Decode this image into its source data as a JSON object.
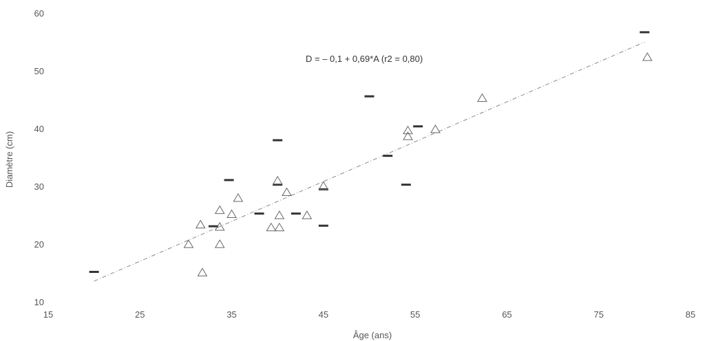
{
  "chart_data": {
    "type": "scatter",
    "title": "",
    "xlabel": "Âge (ans)",
    "ylabel": "Diamètre (cm)",
    "xlim": [
      15,
      85
    ],
    "ylim": [
      10,
      60
    ],
    "xticks": [
      "15",
      "25",
      "35",
      "45",
      "55",
      "65",
      "75",
      "85"
    ],
    "yticks": [
      "10",
      "20",
      "30",
      "40",
      "50",
      "60"
    ],
    "grid": false,
    "annotation": "D = – 0,1 + 0,69*A (r2 = 0,80)",
    "regression": {
      "intercept": -0.1,
      "slope": 0.69,
      "x_range": [
        20,
        80
      ]
    },
    "series": [
      {
        "marker": "dash",
        "color": "#333333",
        "points": [
          [
            20,
            15.3
          ],
          [
            33,
            23.2
          ],
          [
            34.7,
            31.2
          ],
          [
            38,
            25.4
          ],
          [
            40,
            38.1
          ],
          [
            40,
            30.4
          ],
          [
            42,
            25.4
          ],
          [
            45,
            29.6
          ],
          [
            45,
            23.3
          ],
          [
            50,
            45.7
          ],
          [
            52,
            35.4
          ],
          [
            54,
            30.4
          ],
          [
            55.3,
            40.5
          ],
          [
            80,
            56.8
          ]
        ]
      },
      {
        "marker": "triangle",
        "color": "#666666",
        "points": [
          [
            30.3,
            20.1
          ],
          [
            31.6,
            23.5
          ],
          [
            31.8,
            15.2
          ],
          [
            33.7,
            26
          ],
          [
            33.7,
            23.1
          ],
          [
            33.7,
            20.1
          ],
          [
            35,
            25.3
          ],
          [
            35.7,
            28.1
          ],
          [
            39.3,
            23
          ],
          [
            40,
            31.1
          ],
          [
            40.2,
            25.1
          ],
          [
            40.2,
            23
          ],
          [
            41,
            29.1
          ],
          [
            43.2,
            25.1
          ],
          [
            45,
            30.2
          ],
          [
            54.2,
            39.8
          ],
          [
            54.2,
            38.8
          ],
          [
            57.2,
            40
          ],
          [
            62.3,
            45.4
          ],
          [
            80.3,
            52.5
          ]
        ]
      }
    ]
  }
}
